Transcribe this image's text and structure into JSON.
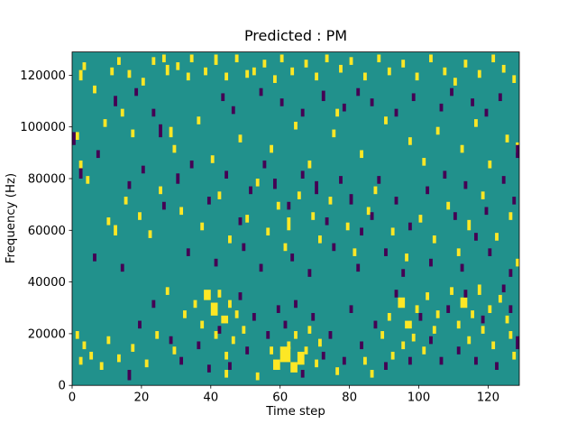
{
  "figure": {
    "background": "#ffffff"
  },
  "chart_data": {
    "type": "heatmap",
    "title": "Predicted : PM",
    "xlabel": "Time step",
    "ylabel": "Frequency (Hz)",
    "xlim": [
      0,
      129
    ],
    "ylim": [
      0,
      129000
    ],
    "x_ticks": [
      0,
      20,
      40,
      60,
      80,
      100,
      120
    ],
    "y_ticks": [
      0,
      20000,
      40000,
      60000,
      80000,
      100000,
      120000
    ],
    "grid": false,
    "legend": "none",
    "background_color": "#21918c",
    "high_color": "#fde725",
    "low_color": "#440154",
    "cell_units": {
      "x": "time-steps",
      "y": "kHz"
    },
    "cells_high": [
      [
        2,
        118,
        1,
        4
      ],
      [
        3,
        122,
        1,
        3
      ],
      [
        6,
        113,
        1,
        3
      ],
      [
        11,
        120,
        1,
        3
      ],
      [
        13,
        124,
        1,
        3
      ],
      [
        16,
        119,
        1,
        3
      ],
      [
        20,
        116,
        1,
        3
      ],
      [
        23,
        124,
        1,
        3
      ],
      [
        26,
        125,
        1,
        3
      ],
      [
        27,
        120,
        1,
        4
      ],
      [
        30,
        122,
        1,
        3
      ],
      [
        33,
        118,
        1,
        3
      ],
      [
        34,
        125,
        1,
        3
      ],
      [
        38,
        120,
        1,
        3
      ],
      [
        41,
        124,
        1,
        4
      ],
      [
        44,
        118,
        1,
        3
      ],
      [
        47,
        125,
        1,
        3
      ],
      [
        50,
        119,
        1,
        3
      ],
      [
        52,
        120,
        1,
        3
      ],
      [
        55,
        123,
        1,
        3
      ],
      [
        58,
        117,
        1,
        3
      ],
      [
        60,
        125,
        1,
        3
      ],
      [
        63,
        120,
        1,
        3
      ],
      [
        67,
        123,
        1,
        3
      ],
      [
        70,
        118,
        1,
        3
      ],
      [
        73,
        125,
        1,
        3
      ],
      [
        77,
        121,
        1,
        3
      ],
      [
        80,
        124,
        1,
        3
      ],
      [
        84,
        118,
        1,
        3
      ],
      [
        88,
        125,
        1,
        3
      ],
      [
        91,
        120,
        1,
        3
      ],
      [
        95,
        123,
        1,
        3
      ],
      [
        99,
        118,
        1,
        3
      ],
      [
        103,
        125,
        1,
        3
      ],
      [
        107,
        120,
        1,
        3
      ],
      [
        110,
        116,
        1,
        3
      ],
      [
        113,
        123,
        1,
        3
      ],
      [
        117,
        119,
        1,
        3
      ],
      [
        121,
        125,
        1,
        3
      ],
      [
        124,
        121,
        1,
        3
      ],
      [
        127,
        117,
        1,
        3
      ],
      [
        1,
        95,
        1,
        3
      ],
      [
        2,
        84,
        1,
        3
      ],
      [
        9,
        100,
        1,
        3
      ],
      [
        14,
        104,
        1,
        3
      ],
      [
        17,
        96,
        1,
        3
      ],
      [
        28,
        96,
        1,
        4
      ],
      [
        29,
        90,
        1,
        3
      ],
      [
        36,
        101,
        1,
        3
      ],
      [
        40,
        86,
        1,
        3
      ],
      [
        48,
        94,
        1,
        3
      ],
      [
        57,
        90,
        1,
        3
      ],
      [
        64,
        99,
        1,
        3
      ],
      [
        68,
        84,
        1,
        3
      ],
      [
        75,
        96,
        1,
        3
      ],
      [
        76,
        104,
        1,
        3
      ],
      [
        83,
        88,
        1,
        3
      ],
      [
        90,
        101,
        1,
        3
      ],
      [
        97,
        93,
        1,
        3
      ],
      [
        101,
        85,
        1,
        3
      ],
      [
        105,
        97,
        1,
        3
      ],
      [
        112,
        90,
        1,
        3
      ],
      [
        116,
        100,
        1,
        3
      ],
      [
        120,
        84,
        1,
        3
      ],
      [
        125,
        94,
        1,
        3
      ],
      [
        128,
        90,
        1,
        4
      ],
      [
        4,
        78,
        1,
        3
      ],
      [
        10,
        62,
        1,
        3
      ],
      [
        12,
        58,
        1,
        4
      ],
      [
        15,
        70,
        1,
        3
      ],
      [
        19,
        64,
        1,
        3
      ],
      [
        22,
        57,
        1,
        3
      ],
      [
        25,
        74,
        1,
        3
      ],
      [
        31,
        66,
        1,
        3
      ],
      [
        37,
        60,
        1,
        3
      ],
      [
        42,
        72,
        1,
        3
      ],
      [
        45,
        55,
        1,
        3
      ],
      [
        50,
        63,
        1,
        3
      ],
      [
        53,
        77,
        1,
        3
      ],
      [
        56,
        58,
        1,
        3
      ],
      [
        59,
        68,
        1,
        3
      ],
      [
        61,
        52,
        1,
        3
      ],
      [
        62,
        60,
        1,
        5
      ],
      [
        65,
        72,
        1,
        3
      ],
      [
        69,
        64,
        1,
        3
      ],
      [
        71,
        55,
        1,
        3
      ],
      [
        74,
        70,
        1,
        3
      ],
      [
        79,
        60,
        1,
        3
      ],
      [
        81,
        50,
        1,
        3
      ],
      [
        85,
        66,
        1,
        3
      ],
      [
        87,
        74,
        1,
        3
      ],
      [
        92,
        58,
        1,
        3
      ],
      [
        96,
        48,
        1,
        3
      ],
      [
        100,
        63,
        1,
        3
      ],
      [
        104,
        55,
        1,
        3
      ],
      [
        108,
        68,
        1,
        3
      ],
      [
        111,
        50,
        1,
        3
      ],
      [
        114,
        60,
        1,
        4
      ],
      [
        118,
        72,
        1,
        3
      ],
      [
        122,
        56,
        1,
        3
      ],
      [
        126,
        64,
        1,
        3
      ],
      [
        128,
        46,
        1,
        3
      ],
      [
        35,
        30,
        1,
        3
      ],
      [
        37,
        22,
        1,
        3
      ],
      [
        38,
        33,
        2,
        4
      ],
      [
        40,
        27,
        2,
        5
      ],
      [
        41,
        18,
        1,
        3
      ],
      [
        42,
        34,
        1,
        3
      ],
      [
        43,
        24,
        2,
        3
      ],
      [
        44,
        10,
        1,
        3
      ],
      [
        45,
        30,
        1,
        3
      ],
      [
        46,
        16,
        1,
        3
      ],
      [
        47,
        26,
        1,
        3
      ],
      [
        49,
        20,
        1,
        3
      ],
      [
        57,
        12,
        1,
        3
      ],
      [
        58,
        6,
        2,
        4
      ],
      [
        60,
        9,
        3,
        6
      ],
      [
        62,
        14,
        1,
        3
      ],
      [
        63,
        5,
        2,
        4
      ],
      [
        64,
        18,
        1,
        3
      ],
      [
        65,
        8,
        2,
        5
      ],
      [
        67,
        12,
        1,
        3
      ],
      [
        68,
        20,
        1,
        3
      ],
      [
        70,
        7,
        1,
        3
      ],
      [
        71,
        15,
        1,
        3
      ],
      [
        89,
        18,
        1,
        3
      ],
      [
        91,
        25,
        1,
        3
      ],
      [
        92,
        10,
        1,
        3
      ],
      [
        94,
        30,
        2,
        4
      ],
      [
        95,
        14,
        1,
        3
      ],
      [
        96,
        22,
        2,
        3
      ],
      [
        98,
        17,
        1,
        3
      ],
      [
        99,
        28,
        1,
        3
      ],
      [
        101,
        12,
        1,
        3
      ],
      [
        102,
        33,
        1,
        3
      ],
      [
        104,
        20,
        1,
        3
      ],
      [
        105,
        26,
        1,
        3
      ],
      [
        109,
        35,
        1,
        3
      ],
      [
        111,
        22,
        1,
        3
      ],
      [
        112,
        30,
        2,
        4
      ],
      [
        114,
        16,
        1,
        3
      ],
      [
        115,
        26,
        1,
        3
      ],
      [
        117,
        35,
        1,
        4
      ],
      [
        118,
        20,
        1,
        3
      ],
      [
        120,
        28,
        1,
        3
      ],
      [
        121,
        14,
        1,
        3
      ],
      [
        123,
        32,
        1,
        3
      ],
      [
        125,
        24,
        1,
        3
      ],
      [
        126,
        18,
        1,
        3
      ],
      [
        127,
        10,
        1,
        3
      ],
      [
        1,
        18,
        1,
        3
      ],
      [
        2,
        8,
        1,
        3
      ],
      [
        3,
        14,
        1,
        3
      ],
      [
        5,
        10,
        1,
        3
      ],
      [
        8,
        6,
        1,
        3
      ],
      [
        10,
        16,
        1,
        3
      ],
      [
        13,
        9,
        1,
        3
      ],
      [
        17,
        13,
        1,
        3
      ],
      [
        21,
        7,
        1,
        3
      ],
      [
        24,
        18,
        1,
        3
      ],
      [
        27,
        35,
        1,
        3
      ],
      [
        29,
        12,
        1,
        3
      ],
      [
        32,
        26,
        1,
        3
      ],
      [
        44,
        3,
        1,
        3
      ],
      [
        53,
        2,
        1,
        3
      ],
      [
        76,
        4,
        1,
        3
      ],
      [
        84,
        8,
        1,
        3
      ],
      [
        86,
        3,
        1,
        3
      ]
    ],
    "cells_low": [
      [
        12,
        108,
        1,
        4
      ],
      [
        18,
        112,
        1,
        3
      ],
      [
        23,
        104,
        1,
        3
      ],
      [
        25,
        96,
        1,
        5
      ],
      [
        43,
        110,
        1,
        3
      ],
      [
        46,
        105,
        1,
        3
      ],
      [
        54,
        112,
        1,
        3
      ],
      [
        60,
        108,
        1,
        3
      ],
      [
        66,
        104,
        1,
        3
      ],
      [
        72,
        110,
        1,
        4
      ],
      [
        78,
        106,
        1,
        3
      ],
      [
        82,
        112,
        1,
        3
      ],
      [
        86,
        108,
        1,
        3
      ],
      [
        93,
        104,
        1,
        3
      ],
      [
        98,
        110,
        1,
        3
      ],
      [
        106,
        106,
        1,
        3
      ],
      [
        109,
        112,
        1,
        3
      ],
      [
        115,
        108,
        1,
        3
      ],
      [
        119,
        104,
        1,
        3
      ],
      [
        123,
        110,
        1,
        3
      ],
      [
        0,
        93,
        1,
        5
      ],
      [
        2,
        80,
        1,
        4
      ],
      [
        7,
        88,
        1,
        3
      ],
      [
        16,
        76,
        1,
        3
      ],
      [
        20,
        82,
        1,
        3
      ],
      [
        26,
        68,
        1,
        3
      ],
      [
        30,
        78,
        1,
        4
      ],
      [
        34,
        84,
        1,
        3
      ],
      [
        39,
        70,
        1,
        3
      ],
      [
        44,
        80,
        1,
        3
      ],
      [
        48,
        62,
        1,
        3
      ],
      [
        51,
        74,
        1,
        3
      ],
      [
        55,
        84,
        1,
        3
      ],
      [
        58,
        76,
        1,
        4
      ],
      [
        62,
        68,
        1,
        3
      ],
      [
        66,
        80,
        1,
        3
      ],
      [
        70,
        74,
        1,
        5
      ],
      [
        73,
        62,
        1,
        3
      ],
      [
        77,
        78,
        1,
        3
      ],
      [
        80,
        70,
        1,
        4
      ],
      [
        83,
        58,
        1,
        3
      ],
      [
        86,
        64,
        1,
        3
      ],
      [
        88,
        78,
        1,
        3
      ],
      [
        93,
        70,
        1,
        3
      ],
      [
        97,
        60,
        1,
        3
      ],
      [
        102,
        74,
        1,
        3
      ],
      [
        107,
        80,
        1,
        3
      ],
      [
        110,
        64,
        1,
        3
      ],
      [
        113,
        76,
        1,
        3
      ],
      [
        116,
        56,
        1,
        3
      ],
      [
        119,
        66,
        1,
        3
      ],
      [
        124,
        78,
        1,
        3
      ],
      [
        127,
        70,
        1,
        3
      ],
      [
        128,
        88,
        1,
        5
      ],
      [
        6,
        48,
        1,
        3
      ],
      [
        14,
        44,
        1,
        3
      ],
      [
        33,
        50,
        1,
        3
      ],
      [
        41,
        46,
        1,
        3
      ],
      [
        49,
        52,
        1,
        3
      ],
      [
        54,
        44,
        1,
        3
      ],
      [
        63,
        48,
        1,
        3
      ],
      [
        68,
        42,
        1,
        3
      ],
      [
        75,
        52,
        1,
        3
      ],
      [
        82,
        44,
        1,
        3
      ],
      [
        90,
        50,
        1,
        3
      ],
      [
        95,
        42,
        1,
        3
      ],
      [
        103,
        46,
        1,
        3
      ],
      [
        112,
        44,
        1,
        3
      ],
      [
        120,
        50,
        1,
        3
      ],
      [
        126,
        42,
        1,
        3
      ],
      [
        16,
        2,
        1,
        4
      ],
      [
        19,
        22,
        1,
        3
      ],
      [
        23,
        30,
        1,
        3
      ],
      [
        28,
        16,
        1,
        3
      ],
      [
        31,
        8,
        1,
        3
      ],
      [
        36,
        14,
        1,
        3
      ],
      [
        39,
        5,
        1,
        3
      ],
      [
        42,
        20,
        1,
        3
      ],
      [
        45,
        6,
        1,
        3
      ],
      [
        48,
        33,
        1,
        3
      ],
      [
        50,
        12,
        1,
        3
      ],
      [
        52,
        25,
        1,
        3
      ],
      [
        56,
        18,
        1,
        3
      ],
      [
        59,
        28,
        1,
        3
      ],
      [
        61,
        22,
        1,
        3
      ],
      [
        64,
        30,
        1,
        3
      ],
      [
        66,
        3,
        1,
        3
      ],
      [
        69,
        25,
        1,
        3
      ],
      [
        72,
        10,
        1,
        3
      ],
      [
        74,
        18,
        1,
        3
      ],
      [
        78,
        8,
        1,
        3
      ],
      [
        80,
        28,
        1,
        3
      ],
      [
        83,
        14,
        1,
        3
      ],
      [
        87,
        22,
        1,
        3
      ],
      [
        90,
        6,
        1,
        3
      ],
      [
        93,
        34,
        1,
        3
      ],
      [
        97,
        8,
        1,
        3
      ],
      [
        100,
        25,
        1,
        3
      ],
      [
        103,
        16,
        1,
        3
      ],
      [
        106,
        8,
        1,
        3
      ],
      [
        108,
        28,
        1,
        3
      ],
      [
        111,
        12,
        1,
        3
      ],
      [
        113,
        34,
        1,
        3
      ],
      [
        116,
        8,
        1,
        3
      ],
      [
        118,
        24,
        1,
        3
      ],
      [
        122,
        6,
        1,
        3
      ],
      [
        124,
        36,
        1,
        3
      ],
      [
        126,
        28,
        1,
        3
      ],
      [
        128,
        14,
        1,
        5
      ]
    ]
  }
}
